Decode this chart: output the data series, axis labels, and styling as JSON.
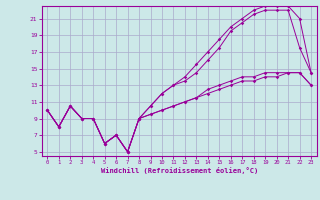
{
  "xlabel": "Windchill (Refroidissement éolien,°C)",
  "bg_color": "#cce8e8",
  "grid_color": "#aaaacc",
  "line_color": "#990099",
  "xlim": [
    -0.5,
    23.5
  ],
  "ylim": [
    4.5,
    22.5
  ],
  "xticks": [
    0,
    1,
    2,
    3,
    4,
    5,
    6,
    7,
    8,
    9,
    10,
    11,
    12,
    13,
    14,
    15,
    16,
    17,
    18,
    19,
    20,
    21,
    22,
    23
  ],
  "yticks": [
    5,
    7,
    9,
    11,
    13,
    15,
    17,
    19,
    21
  ],
  "line1_x": [
    0,
    1,
    2,
    3,
    4,
    5,
    6,
    7,
    8,
    9,
    10,
    11,
    12,
    13,
    14,
    15,
    16,
    17,
    18,
    19,
    20,
    21,
    22,
    23
  ],
  "line1_y": [
    10,
    8,
    10.5,
    9,
    9,
    6,
    7,
    5,
    9,
    9.5,
    10,
    10.5,
    11,
    11.5,
    12,
    12.5,
    13,
    13.5,
    13.5,
    14,
    14,
    14.5,
    14.5,
    13
  ],
  "line2_x": [
    0,
    1,
    2,
    3,
    4,
    5,
    6,
    7,
    8,
    9,
    10,
    11,
    12,
    13,
    14,
    15,
    16,
    17,
    18,
    19,
    20,
    21,
    22,
    23
  ],
  "line2_y": [
    10,
    8,
    10.5,
    9,
    9,
    6,
    7,
    5,
    9,
    10.5,
    12,
    13,
    14,
    15.5,
    17,
    18.5,
    20,
    21,
    22,
    22.5,
    22.5,
    22.5,
    21,
    14.5
  ],
  "line3_x": [
    0,
    1,
    2,
    3,
    4,
    5,
    6,
    7,
    8,
    9,
    10,
    11,
    12,
    13,
    14,
    15,
    16,
    17,
    18,
    19,
    20,
    21,
    22,
    23
  ],
  "line3_y": [
    10,
    8,
    10.5,
    9,
    9,
    6,
    7,
    5,
    9,
    10.5,
    12,
    13,
    13.5,
    14.5,
    16,
    17.5,
    19.5,
    20.5,
    21.5,
    22,
    22,
    22,
    17.5,
    14.5
  ],
  "line4_x": [
    0,
    1,
    2,
    3,
    4,
    5,
    6,
    7,
    8,
    9,
    10,
    11,
    12,
    13,
    14,
    15,
    16,
    17,
    18,
    19,
    20,
    21,
    22,
    23
  ],
  "line4_y": [
    10,
    8,
    10.5,
    9,
    9,
    6,
    7,
    5,
    9,
    9.5,
    10,
    10.5,
    11,
    11.5,
    12.5,
    13,
    13.5,
    14,
    14,
    14.5,
    14.5,
    14.5,
    14.5,
    13
  ]
}
